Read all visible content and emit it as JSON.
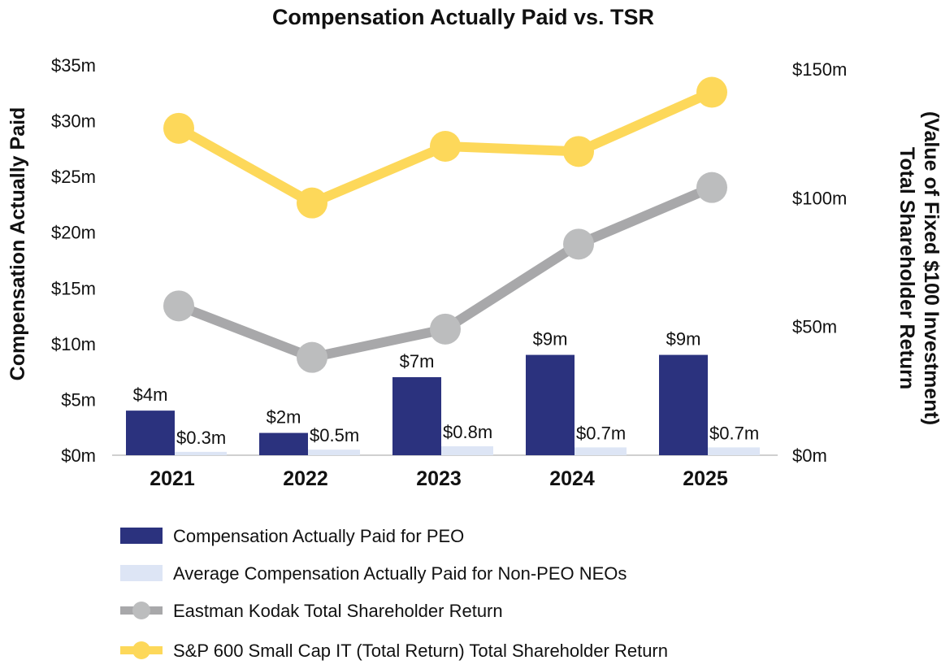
{
  "chart_data": {
    "type": "bar+line",
    "title": "Compensation Actually Paid vs. TSR",
    "categories": [
      "2021",
      "2022",
      "2023",
      "2024",
      "2025"
    ],
    "ylabel_left": "Compensation Actually Paid",
    "ylabel_right_line1": "Total Shareholder Return",
    "ylabel_right_line2": "(Value of Fixed $100 Investment)",
    "ylim_left": [
      0,
      35
    ],
    "ylim_right": [
      0,
      150
    ],
    "left_ticks": [
      0,
      5,
      10,
      15,
      20,
      25,
      30,
      35
    ],
    "left_tick_labels": [
      "$0m",
      "$5m",
      "$10m",
      "$15m",
      "$20m",
      "$25m",
      "$30m",
      "$35m"
    ],
    "right_ticks": [
      0,
      50,
      100,
      150
    ],
    "right_tick_labels": [
      "$0m",
      "$50m",
      "$100m",
      "$150m"
    ],
    "bar_series": [
      {
        "name": "Compensation Actually Paid for PEO",
        "color": "#2b327e",
        "values": [
          4,
          2,
          7,
          9,
          9
        ],
        "labels": [
          "$4m",
          "$2m",
          "$7m",
          "$9m",
          "$9m"
        ]
      },
      {
        "name": "Average Compensation Actually Paid for Non-PEO NEOs",
        "color": "#dde5f5",
        "values": [
          0.3,
          0.5,
          0.8,
          0.7,
          0.7
        ],
        "labels": [
          "$0.3m",
          "$0.5m",
          "$0.8m",
          "$0.7m",
          "$0.7m"
        ]
      }
    ],
    "line_series": [
      {
        "name": "Eastman Kodak Total Shareholder Return",
        "color": "#a8a8aa",
        "marker": "#bcbdbe",
        "axis": "right",
        "values": [
          58,
          38,
          49,
          82,
          104
        ]
      },
      {
        "name": "S&P 600 Small Cap IT (Total Return) Total Shareholder Return",
        "color": "#fdd85a",
        "marker": "#fdd85a",
        "axis": "right",
        "values": [
          127,
          98,
          120,
          118,
          141
        ]
      }
    ],
    "legend_position": "bottom",
    "grid": false
  }
}
